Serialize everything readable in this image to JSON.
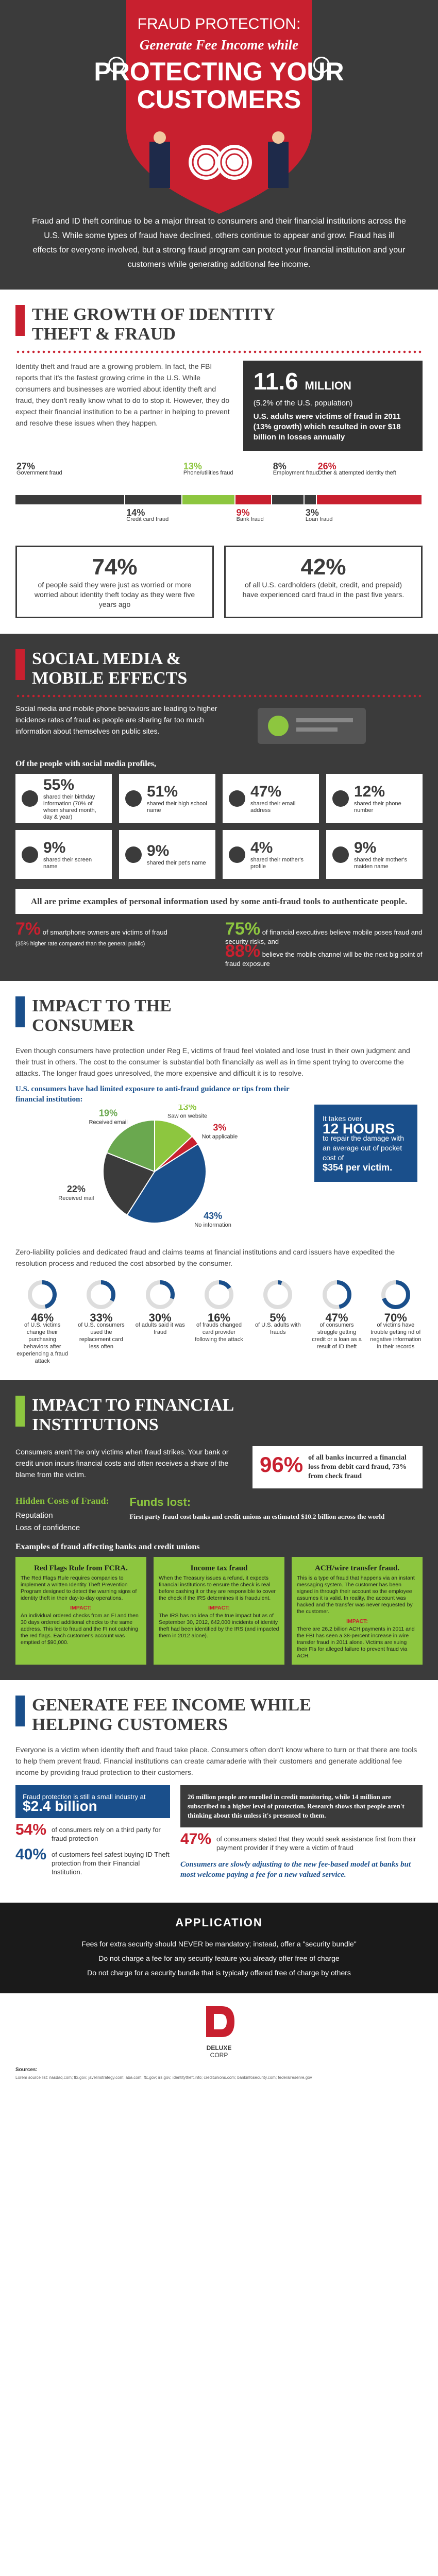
{
  "header": {
    "title_line1": "FRAUD PROTECTION:",
    "title_line2": "Generate Fee Income while",
    "title_line3": "PROTECTING YOUR",
    "title_line4": "CUSTOMERS",
    "intro": "Fraud and ID theft continue to be a major threat to consumers and their financial institutions across the U.S. While some types of fraud have declined, others continue to appear and grow. Fraud has ill effects for everyone involved, but a strong fraud program can protect your financial institution and your customers while generating additional fee income."
  },
  "growth": {
    "heading_line1": "THE GROWTH OF IDENTITY",
    "heading_line2": "THEFT & FRAUD",
    "body": "Identity theft and fraud are a growing problem. In fact, the FBI reports that it's the fastest growing crime in the U.S. While consumers and businesses are worried about identity theft and fraud, they don't really know what to do to stop it. However, they do expect their financial institution to be a partner in helping to prevent and resolve these issues when they happen.",
    "stat_value": "11.6",
    "stat_unit": "MILLION",
    "stat_note": "(5.2% of the U.S. population)",
    "stat_desc": "U.S. adults were victims of fraud in 2011 (13% growth) which resulted in over $18 billion in losses annually",
    "bars": [
      {
        "pct": "27%",
        "label": "Government fraud",
        "color": "#3b3b3b"
      },
      {
        "pct": "14%",
        "label": "Credit card fraud",
        "color": "#3b3b3b"
      },
      {
        "pct": "13%",
        "label": "Phone/utilities fraud",
        "color": "#8dc63f"
      },
      {
        "pct": "9%",
        "label": "Bank fraud",
        "color": "#c8202f"
      },
      {
        "pct": "8%",
        "label": "Employment fraud",
        "color": "#3b3b3b"
      },
      {
        "pct": "3%",
        "label": "Loan fraud",
        "color": "#3b3b3b"
      },
      {
        "pct": "26%",
        "label": "Other & attempted identity theft",
        "color": "#c8202f"
      }
    ],
    "stat2_value": "74%",
    "stat2_desc": "of people said they were just as worried or more worried about identity theft today as they were five years ago",
    "stat3_value": "42%",
    "stat3_desc": "of all U.S. cardholders (debit, credit, and prepaid) have experienced card fraud in the past five years."
  },
  "social": {
    "heading_line1": "SOCIAL MEDIA &",
    "heading_line2": "MOBILE EFFECTS",
    "body": "Social media and mobile phone behaviors are leading to higher incidence rates of fraud as people are sharing far too much information about themselves on public sites.",
    "profiles_title": "Of the people with social media profiles,",
    "profiles": [
      {
        "n": "55%",
        "d": "shared their birthday information (70% of whom shared month, day & year)",
        "icon": "cake-icon"
      },
      {
        "n": "51%",
        "d": "shared their high school name",
        "icon": "school-icon"
      },
      {
        "n": "47%",
        "d": "shared their email address",
        "icon": "at-icon"
      },
      {
        "n": "12%",
        "d": "shared their phone number",
        "icon": "phone-icon"
      },
      {
        "n": "9%",
        "d": "shared their screen name",
        "icon": "screen-icon"
      },
      {
        "n": "9%",
        "d": "shared their pet's name",
        "icon": "paw-icon"
      },
      {
        "n": "4%",
        "d": "shared their mother's profile",
        "icon": "mother-icon"
      },
      {
        "n": "9%",
        "d": "shared their mother's maiden name",
        "icon": "mother-name-icon"
      }
    ],
    "all_prime": "All are prime examples of personal information used by some anti-fraud tools to authenticate people.",
    "smartphone_pct": "7%",
    "smartphone_desc": "of smartphone owners are victims of fraud",
    "smartphone_note": "(35% higher rate compared than the general public)",
    "exec_pct": "75%",
    "exec_desc": "of financial executives believe mobile poses fraud and security risks, and",
    "exec2_pct": "88%",
    "exec2_desc": "believe the mobile channel will be the next big point of fraud exposure"
  },
  "consumer": {
    "heading_line1": "IMPACT TO THE",
    "heading_line2": "CONSUMER",
    "body": "Even though consumers have protection under Reg E, victims of fraud feel violated and lose trust in their own judgment and their trust in others. The cost to the consumer is substantial both financially as well as in time spent trying to overcome the attacks. The longer fraud goes unresolved, the more expensive and difficult it is to resolve.",
    "chart_title": "U.S. consumers have had limited exposure to anti-fraud guidance or tips from their financial institution:",
    "pie_labels": [
      {
        "pct": "13%",
        "label": "Saw on website"
      },
      {
        "pct": "3%",
        "label": "Not applicable"
      },
      {
        "pct": "43%",
        "label": "No information"
      },
      {
        "pct": "22%",
        "label": "Received mail"
      },
      {
        "pct": "19%",
        "label": "Received email"
      }
    ],
    "hours_pre": "It takes over",
    "hours_value": "12 HOURS",
    "hours_desc": "to repair the damage with an average out of pocket cost of",
    "hours_cost": "$354 per victim.",
    "zero_liability": "Zero-liability policies and dedicated fraud and claims teams at financial institutions and card issuers have expedited the resolution process and reduced the cost absorbed by the consumer.",
    "rings": [
      {
        "n": "46%",
        "d": "of U.S. victims change their purchasing behaviors after experiencing a fraud attack"
      },
      {
        "n": "33%",
        "d": "of U.S. consumers used the replacement card less often"
      },
      {
        "n": "30%",
        "d": "of adults said it was fraud"
      },
      {
        "n": "16%",
        "d": "of frauds changed card provider following the attack"
      },
      {
        "n": "5%",
        "d": "of U.S. adults with frauds"
      },
      {
        "n": "47%",
        "d": "of consumers struggle getting credit or a loan as a result of ID theft"
      },
      {
        "n": "70%",
        "d": "of victims have trouble getting rid of negative information in their records"
      }
    ]
  },
  "fi": {
    "heading_line1": "IMPACT TO FINANCIAL",
    "heading_line2": "INSTITUTIONS",
    "body": "Consumers aren't the only victims when fraud strikes. Your bank or credit union incurs financial costs and often receives a share of the blame from the victim.",
    "stat_value": "96%",
    "stat_desc": "of all banks incurred a financial loss from debit card fraud, 73% from check fraud",
    "hidden_title": "Hidden Costs of Fraud:",
    "hidden_items": [
      "Reputation",
      "Loss of confidence"
    ],
    "funds_title": "Funds lost:",
    "funds_desc": "First party fraud cost banks and credit unions an estimated $10.2 billion across the world",
    "examples_title": "Examples of fraud affecting banks and credit unions",
    "examples": [
      {
        "title": "Red Flags Rule from FCRA.",
        "body": "The Red Flags Rule requires companies to implement a written Identity Theft Prevention Program designed to detect the warning signs of identity theft in their day-to-day operations.",
        "impact_label": "IMPACT:",
        "impact": "An individual ordered checks from an FI and then 30 days ordered additional checks to the same address. This led to fraud and the FI not catching the red flags. Each customer's account was emptied of $90,000."
      },
      {
        "title": "Income tax fraud",
        "body": "When the Treasury issues a refund, it expects financial institutions to ensure the check is real before cashing it or they are responsible to cover the check if the IRS determines it is fraudulent.",
        "impact_label": "IMPACT:",
        "impact": "The IRS has no idea of the true impact but as of September 30, 2012, 642,000 incidents of identity theft had been identified by the IRS (and impacted them in 2012 alone)."
      },
      {
        "title": "ACH/wire transfer fraud.",
        "body": "This is a type of fraud that happens via an instant messaging system. The customer has been signed in through their account so the employee assumes it is valid. In reality, the account was hacked and the transfer was never requested by the customer.",
        "impact_label": "IMPACT:",
        "impact": "There are 26.2 billion ACH payments in 2011 and the FBI has seen a 38-percent increase in wire transfer fraud in 2011 alone. Victims are suing their FIs for alleged failure to prevent fraud via ACH."
      }
    ]
  },
  "fee": {
    "heading_line1": "GENERATE FEE INCOME WHILE",
    "heading_line2": "HELPING CUSTOMERS",
    "body": "Everyone is a victim when identity theft and fraud take place. Consumers often don't know where to turn or that there are tools to help them prevent fraud. Financial institutions can create camaraderie with their customers and generate additional fee income by providing fraud protection to their customers.",
    "market_desc": "Fraud protection is still a small industry at",
    "market_value": "$2.4 billion",
    "grey_box": "26 million people are enrolled in credit monitoring, while 14 million are subscribed to a higher level of protection. Research shows that people aren't thinking about this unless it's presented to them.",
    "s1_value": "54%",
    "s1_desc": "of consumers rely on a third party for fraud protection",
    "s2_value": "47%",
    "s2_desc": "of consumers stated that they would seek assistance first from their payment provider if they were a victim of fraud",
    "s3_value": "40%",
    "s3_desc": "of customers feel safest buying ID Theft protection from their Financial Institution.",
    "note": "Consumers are slowly adjusting to the new fee-based model at banks but most welcome paying a fee for a new valued service."
  },
  "application": {
    "title": "APPLICATION",
    "items": [
      "Fees for extra security should NEVER be mandatory; instead, offer a \"security bundle\"",
      "Do not charge a fee for any security feature you already offer free of charge",
      "Do not charge for a security bundle that is typically offered free of charge by others"
    ]
  },
  "footer": {
    "logo_line1": "DELUXE",
    "logo_line2": "CORP",
    "sources_title": "Sources:",
    "sources": "Lorem source list: nasdaq.com; fbi.gov; javelinstrategy.com; aba.com; ftc.gov; irs.gov; identitytheft.info; creditunions.com; bankinfosecurity.com; federalreserve.gov"
  },
  "colors": {
    "red": "#c8202f",
    "dark": "#3b3b3b",
    "green": "#8dc63f",
    "blue": "#1a4f8b"
  }
}
